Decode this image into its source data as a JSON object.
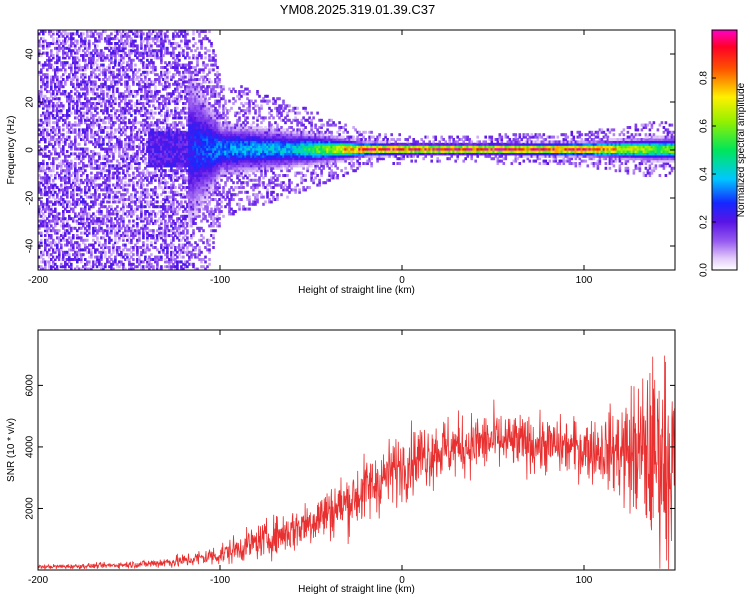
{
  "title": "YM08.2025.319.01.39.C37",
  "chart_data": [
    {
      "type": "heatmap",
      "xlabel": "Height of straight line (km)",
      "ylabel": "Frequency (Hz)",
      "xlim": [
        -200,
        150
      ],
      "ylim": [
        -50,
        50
      ],
      "xticks": [
        -200,
        -100,
        0,
        100
      ],
      "yticks": [
        -40,
        -20,
        0,
        20,
        40
      ],
      "colorbar": {
        "label": "Normalized spectral amplitude",
        "range": [
          0.0,
          1.0
        ],
        "ticks": [
          0.0,
          0.2,
          0.4,
          0.6,
          0.8
        ],
        "colormap": "white-violet-blue-cyan-green-yellow-red-magenta"
      },
      "band_center_hz": 0,
      "band_halfwidth_hz": [
        {
          "x": -200,
          "halfwidth": 50,
          "peak_amplitude": 0.15
        },
        {
          "x": -120,
          "halfwidth": 40,
          "peak_amplitude": 0.25
        },
        {
          "x": -100,
          "halfwidth": 12,
          "peak_amplitude": 0.35
        },
        {
          "x": -60,
          "halfwidth": 8,
          "peak_amplitude": 0.4
        },
        {
          "x": -20,
          "halfwidth": 3,
          "peak_amplitude": 0.9
        },
        {
          "x": 0,
          "halfwidth": 2.5,
          "peak_amplitude": 0.95
        },
        {
          "x": 50,
          "halfwidth": 2.5,
          "peak_amplitude": 0.97
        },
        {
          "x": 100,
          "halfwidth": 3,
          "peak_amplitude": 0.9
        },
        {
          "x": 140,
          "halfwidth": 5,
          "peak_amplitude": 0.6
        }
      ]
    },
    {
      "type": "line",
      "xlabel": "Height of straight line (km)",
      "ylabel": "SNR (10 * v/v)",
      "xlim": [
        -200,
        150
      ],
      "ylim": [
        0,
        7800
      ],
      "xticks": [
        -200,
        -100,
        0,
        100
      ],
      "yticks": [
        2000,
        4000,
        6000
      ],
      "color": "#e83030",
      "series": [
        {
          "name": "SNR",
          "x": [
            -200,
            -180,
            -160,
            -140,
            -120,
            -110,
            -100,
            -90,
            -80,
            -70,
            -60,
            -50,
            -40,
            -30,
            -20,
            -10,
            0,
            10,
            20,
            30,
            40,
            50,
            60,
            70,
            80,
            90,
            100,
            110,
            120,
            130,
            140,
            150
          ],
          "y": [
            100,
            120,
            150,
            200,
            300,
            400,
            500,
            700,
            900,
            1100,
            1300,
            1600,
            1900,
            2200,
            2600,
            3000,
            3400,
            3700,
            3900,
            4000,
            4100,
            4200,
            4150,
            4100,
            4050,
            4000,
            3950,
            3900,
            3850,
            3800,
            3700,
            3600
          ],
          "spread": [
            80,
            90,
            100,
            150,
            250,
            300,
            400,
            500,
            600,
            700,
            800,
            900,
            1000,
            1100,
            1200,
            1200,
            1200,
            1200,
            1200,
            1100,
            1100,
            1100,
            1000,
            1000,
            1000,
            1000,
            1100,
            1200,
            1800,
            2800,
            3500,
            3000
          ]
        }
      ]
    }
  ]
}
